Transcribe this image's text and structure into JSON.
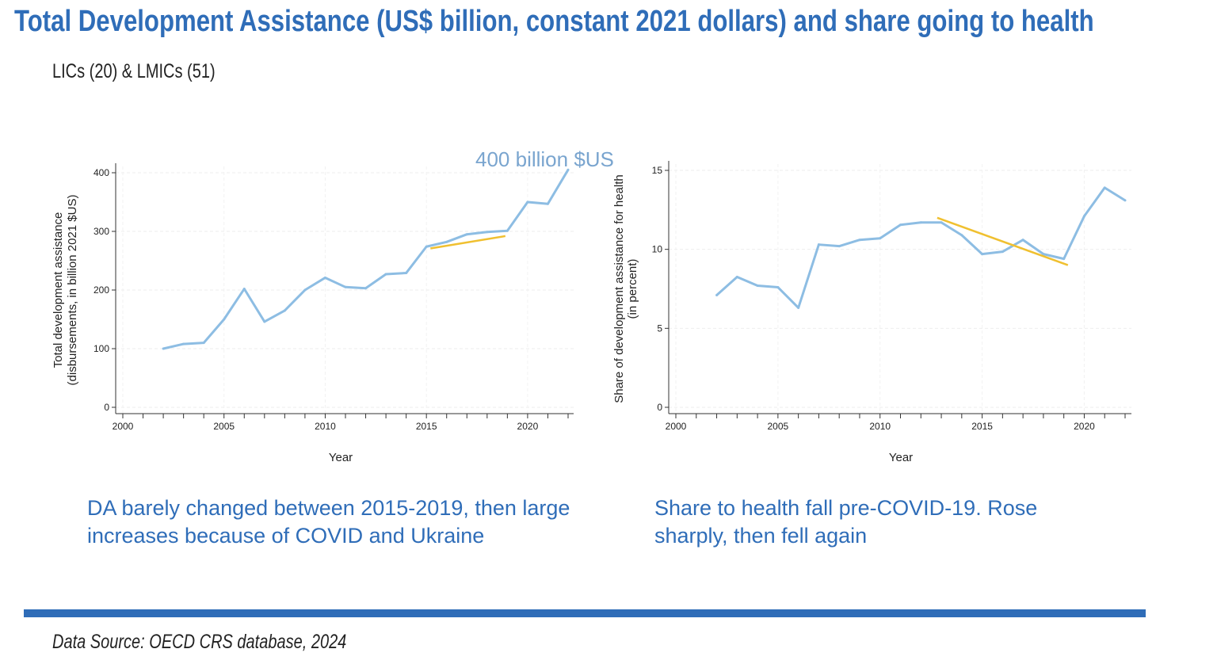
{
  "slide": {
    "title": "Total Development Assistance (US$ billion, constant 2021 dollars) and share going to health",
    "subtitle": "LICs (20) & LMICs (51)",
    "caption_left": "DA barely changed between 2015-2019, then large increases because of COVID and Ukraine",
    "caption_right": "Share to health fall pre-COVID-19.  Rose sharply, then fell again",
    "source": "Data Source: OECD  CRS database, 2024",
    "accent_color": "#2f6db8"
  },
  "chart_data": [
    {
      "type": "line",
      "xlabel": "Year",
      "ylabel": [
        "Total development assistance",
        "(disbursements, in billion 2021 $US)"
      ],
      "xlim": [
        2000,
        2022
      ],
      "ylim": [
        0,
        400
      ],
      "xticks": [
        2000,
        2005,
        2010,
        2015,
        2020
      ],
      "yticks": [
        0,
        100,
        200,
        300,
        400
      ],
      "grid": true,
      "annotation": "400 billion $US",
      "x": [
        2002,
        2003,
        2004,
        2005,
        2006,
        2007,
        2008,
        2009,
        2010,
        2011,
        2012,
        2013,
        2014,
        2015,
        2016,
        2017,
        2018,
        2019,
        2020,
        2021,
        2022
      ],
      "series": [
        {
          "values": [
            100,
            108,
            110,
            150,
            202,
            146,
            165,
            200,
            221,
            205,
            203,
            227,
            229,
            274,
            282,
            295,
            299,
            301,
            350,
            347,
            405
          ],
          "color": "#8dbde3"
        }
      ],
      "trend": {
        "x": [
          2015.2,
          2018.9
        ],
        "y": [
          271,
          292
        ],
        "color": "#f0c030"
      }
    },
    {
      "type": "line",
      "xlabel": "Year",
      "ylabel": [
        "Share of development assistance for health",
        "(in percent)"
      ],
      "xlim": [
        2000,
        2022
      ],
      "ylim": [
        0,
        15
      ],
      "xticks": [
        2000,
        2005,
        2010,
        2015,
        2020
      ],
      "yticks": [
        0,
        5,
        10,
        15
      ],
      "grid": true,
      "x": [
        2002,
        2003,
        2004,
        2005,
        2006,
        2007,
        2008,
        2009,
        2010,
        2011,
        2012,
        2013,
        2014,
        2015,
        2016,
        2017,
        2018,
        2019,
        2020,
        2021,
        2022
      ],
      "series": [
        {
          "values": [
            7.1,
            8.25,
            7.7,
            7.6,
            6.3,
            10.3,
            10.2,
            10.6,
            10.7,
            11.55,
            11.7,
            11.7,
            10.9,
            9.7,
            9.85,
            10.6,
            9.7,
            9.4,
            12.1,
            13.9,
            13.1
          ],
          "color": "#8dbde3"
        }
      ],
      "trend": {
        "x": [
          2012.8,
          2019.2
        ],
        "y": [
          12.0,
          9.0
        ],
        "color": "#f0c030"
      }
    }
  ]
}
